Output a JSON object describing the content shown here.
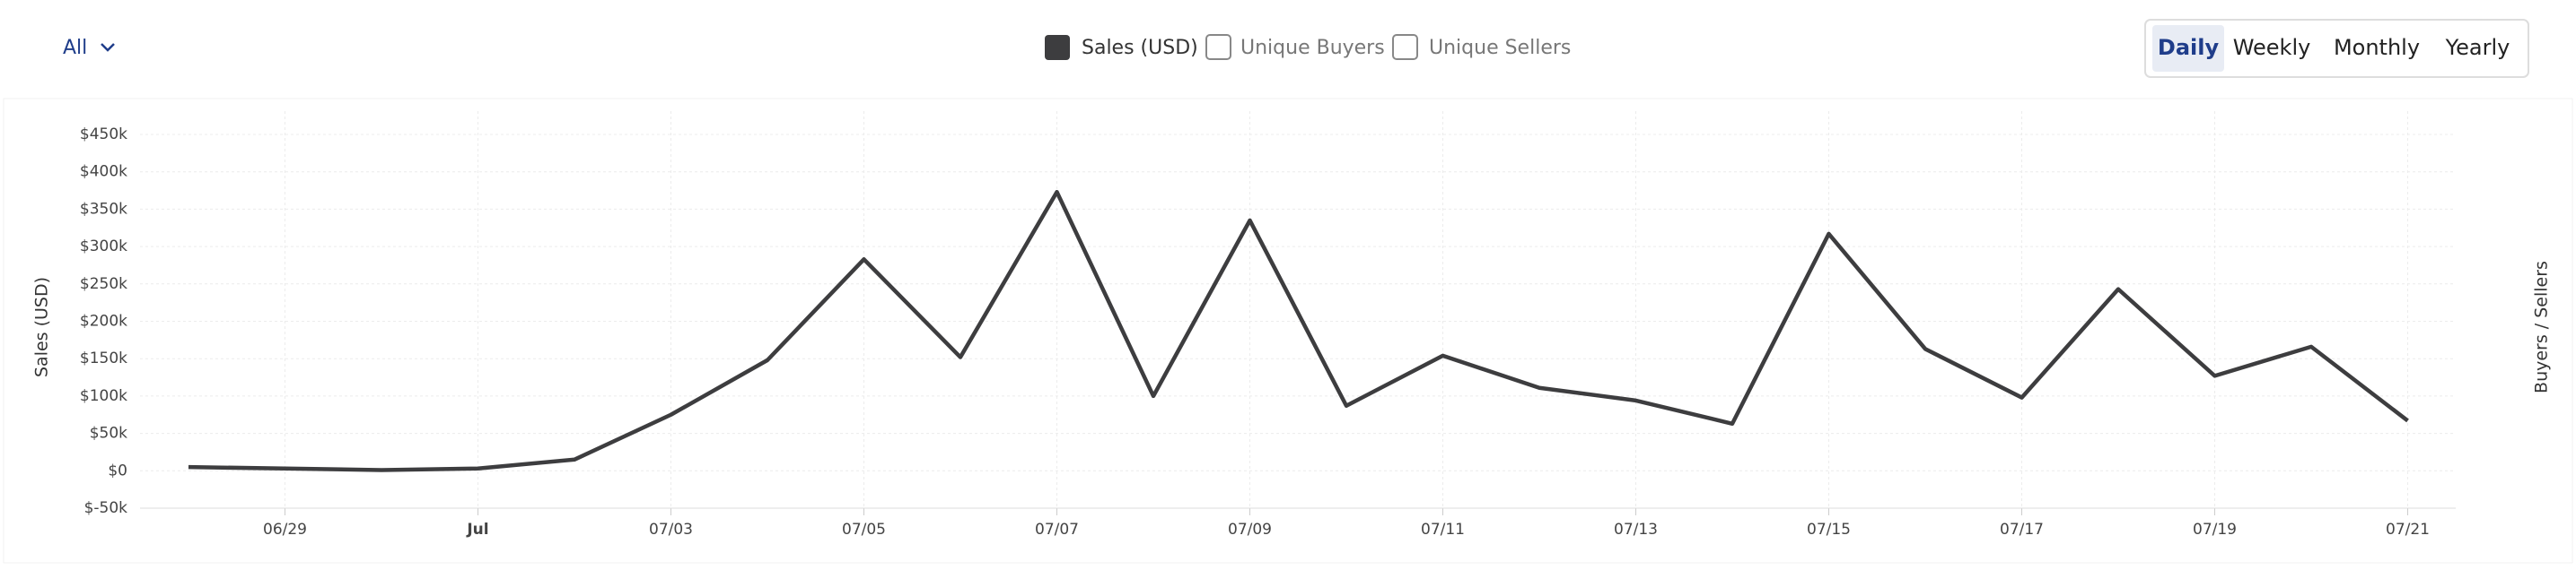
{
  "controls": {
    "filter": "All",
    "toggles": [
      "Unique Buyers",
      "Unique Sellers"
    ],
    "periods": [
      "Daily",
      "Weekly",
      "Monthly",
      "Yearly"
    ],
    "active_period": "Daily"
  },
  "chart_data": {
    "type": "line",
    "ylabel": "Sales (USD)",
    "y2label": "Buyers / Sellers",
    "categories": [
      null,
      "06/29",
      null,
      "Jul",
      null,
      "07/03",
      null,
      "07/05",
      null,
      "07/07",
      null,
      "07/09",
      null,
      "07/11",
      null,
      "07/13",
      null,
      "07/15",
      null,
      "07/17",
      null,
      "07/19",
      null,
      "07/21"
    ],
    "series": [
      {
        "name": "Sales (USD)",
        "color": "#3d3d3f",
        "values": [
          5000,
          3000,
          1000,
          3000,
          15000,
          75000,
          148000,
          283000,
          152000,
          373000,
          100000,
          335000,
          87000,
          154000,
          111000,
          94000,
          63000,
          317000,
          163000,
          98000,
          243000,
          127000,
          166000,
          67000
        ]
      }
    ],
    "ylim": [
      -50000,
      450000
    ],
    "yticks": [
      {
        "value": -50000,
        "label": "$-50k"
      },
      {
        "value": 0,
        "label": "$0"
      },
      {
        "value": 50000,
        "label": "$50k"
      },
      {
        "value": 100000,
        "label": "$100k"
      },
      {
        "value": 150000,
        "label": "$150k"
      },
      {
        "value": 200000,
        "label": "$200k"
      },
      {
        "value": 250000,
        "label": "$250k"
      },
      {
        "value": 300000,
        "label": "$300k"
      },
      {
        "value": 350000,
        "label": "$350k"
      },
      {
        "value": 400000,
        "label": "$400k"
      },
      {
        "value": 450000,
        "label": "$450k"
      }
    ],
    "grid": true
  }
}
